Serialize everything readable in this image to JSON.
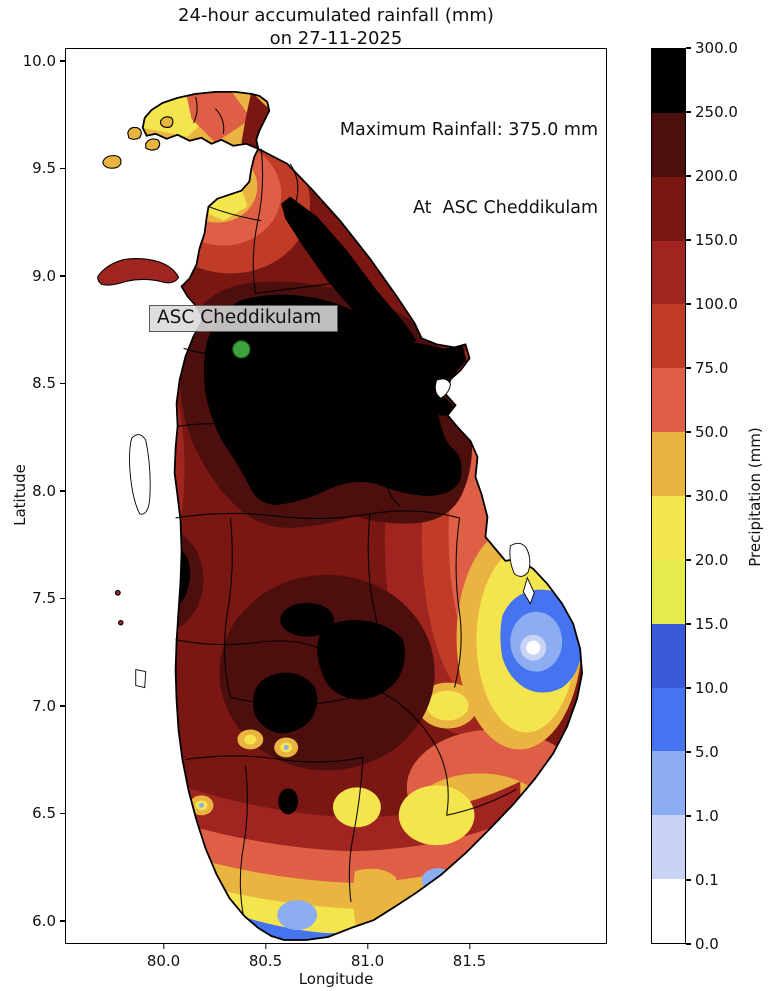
{
  "title": {
    "line1": "24-hour accumulated rainfall (mm)",
    "line2": "on 27-11-2025"
  },
  "annotation": {
    "line1": "Maximum Rainfall: 375.0 mm",
    "line2": "At  ASC Cheddikulam"
  },
  "station_label": "ASC Cheddikulam",
  "axes": {
    "xlabel": "Longitude",
    "ylabel": "Latitude",
    "xticks": [
      {
        "value": 80.0,
        "label": "80.0"
      },
      {
        "value": 80.5,
        "label": "80.5"
      },
      {
        "value": 81.0,
        "label": "81.0"
      },
      {
        "value": 81.5,
        "label": "81.5"
      }
    ],
    "yticks": [
      {
        "value": 10.0,
        "label": "10.0"
      },
      {
        "value": 9.5,
        "label": "9.5"
      },
      {
        "value": 9.0,
        "label": "9.0"
      },
      {
        "value": 8.5,
        "label": "8.5"
      },
      {
        "value": 8.0,
        "label": "8.0"
      },
      {
        "value": 7.5,
        "label": "7.5"
      },
      {
        "value": 7.0,
        "label": "7.0"
      },
      {
        "value": 6.5,
        "label": "6.5"
      },
      {
        "value": 6.0,
        "label": "6.0"
      }
    ]
  },
  "colorbar": {
    "label": "Precipitation (mm)",
    "tick_labels": [
      "0.0",
      "0.1",
      "1.0",
      "5.0",
      "10.0",
      "15.0",
      "20.0",
      "30.0",
      "50.0",
      "75.0",
      "100.0",
      "150.0",
      "200.0",
      "250.0",
      "300.0"
    ],
    "boundaries": [
      0.0,
      0.1,
      1.0,
      5.0,
      10.0,
      15.0,
      20.0,
      30.0,
      50.0,
      75.0,
      100.0,
      150.0,
      200.0,
      250.0,
      300.0
    ],
    "colors": [
      "#ffffff",
      "#c9d3f6",
      "#8cadf2",
      "#4673ef",
      "#3a5bd9",
      "#e3ec4c",
      "#f4e54e",
      "#eab440",
      "#de5f45",
      "#c13c27",
      "#a02420",
      "#7a1712",
      "#4d0f0e",
      "#030000"
    ]
  },
  "marker": {
    "fill": "#3fa33f",
    "edge": "#1f6b1f"
  },
  "chart_data": {
    "type": "heatmap",
    "subtype": "geographic rainfall map of Sri Lanka, pixelated raster with district boundaries",
    "title": "24-hour accumulated rainfall (mm)",
    "date": "27-11-2025",
    "max_rainfall_mm": 375.0,
    "max_location": "ASC Cheddikulam",
    "xlabel": "Longitude",
    "ylabel": "Latitude",
    "xlim": [
      79.517,
      82.174
    ],
    "ylim": [
      5.893,
      10.06
    ],
    "xtick_values": [
      80.0,
      80.5,
      81.0,
      81.5
    ],
    "ytick_values": [
      10.0,
      9.5,
      9.0,
      8.5,
      8.0,
      7.5,
      7.0,
      6.5,
      6.0
    ],
    "colorbar_label": "Precipitation (mm)",
    "level_boundaries_mm": [
      0.0,
      0.1,
      1.0,
      5.0,
      10.0,
      15.0,
      20.0,
      30.0,
      50.0,
      75.0,
      100.0,
      150.0,
      200.0,
      250.0,
      300.0
    ],
    "level_colors": [
      "#ffffff",
      "#c9d3f6",
      "#8cadf2",
      "#4673ef",
      "#3a5bd9",
      "#e3ec4c",
      "#f4e54e",
      "#eab440",
      "#de5f45",
      "#c13c27",
      "#a02420",
      "#7a1712",
      "#4d0f0e",
      "#030000"
    ],
    "station": {
      "name": "ASC Cheddikulam",
      "lon": 80.38,
      "lat": 8.66
    },
    "regions": [
      {
        "area": "North-central interior (Vavuniya / Anuradhapura, around station)",
        "rainfall_mm": "250-300+ (black)"
      },
      {
        "area": "North-east coastal strip (Mullaitivu to Trincomalee)",
        "rainfall_mm": "250-300+ (black)"
      },
      {
        "area": "Most of northern, western and central interior",
        "rainfall_mm": "150-250 (dark red)"
      },
      {
        "area": "Central hill patches and west-central blobs",
        "rainfall_mm": "250-300+ (black)"
      },
      {
        "area": "Jaffna peninsula and Pooneryn wedge",
        "rainfall_mm": "15-75 (yellow to salmon)"
      },
      {
        "area": "East coast bulge near Batticaloa",
        "rainfall_mm": "0.1-30 (blue core, white center, yellow ring)"
      },
      {
        "area": "South-east interior",
        "rainfall_mm": "20-75 (yellow / orange)"
      },
      {
        "area": "Southern coastal belt (Galle to Hambantota)",
        "rainfall_mm": "1-15 (blue) grading inland through 15-100"
      }
    ]
  }
}
